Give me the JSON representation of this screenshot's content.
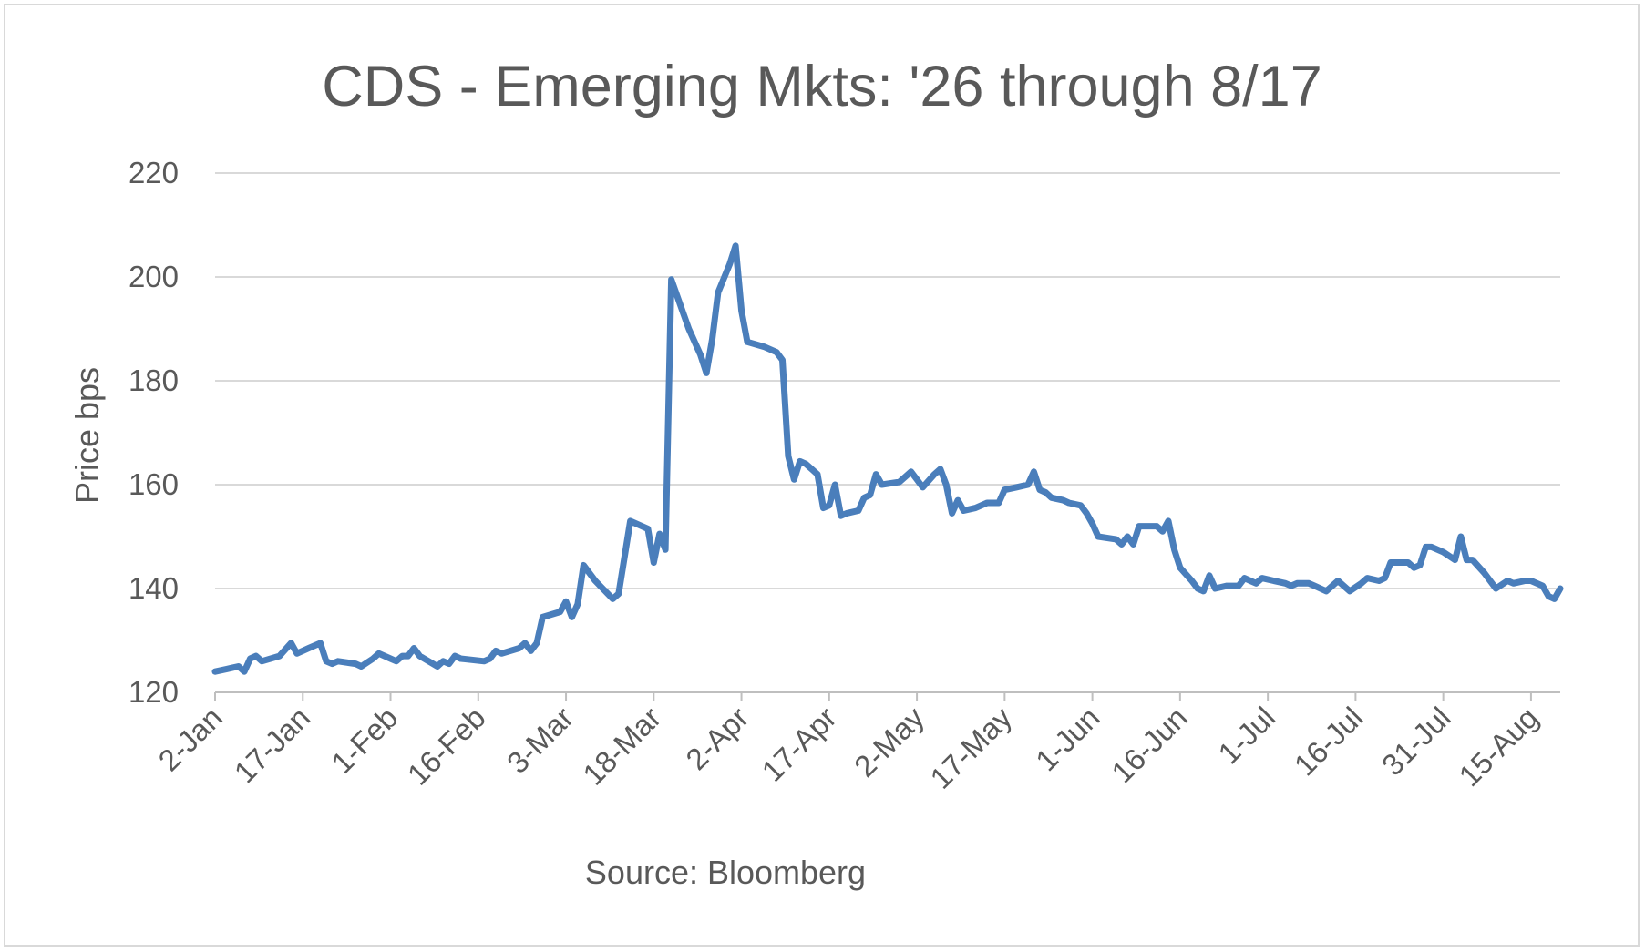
{
  "chart_data": {
    "type": "line",
    "title": "CDS - Emerging Mkts: '26 through 8/17",
    "ylabel": "Price bps",
    "xlabel": "Source: Bloomberg",
    "ylim": [
      120,
      220
    ],
    "yticks": [
      "120",
      "140",
      "160",
      "180",
      "200",
      "220"
    ],
    "xticks": [
      "2-Jan",
      "17-Jan",
      "1-Feb",
      "16-Feb",
      "3-Mar",
      "18-Mar",
      "2-Apr",
      "17-Apr",
      "2-May",
      "17-May",
      "1-Jun",
      "16-Jun",
      "1-Jul",
      "16-Jul",
      "31-Jul",
      "15-Aug"
    ],
    "x_range_days": [
      0,
      230
    ],
    "grid": true,
    "legend": "none",
    "series_color": "#4a7ebb",
    "points": [
      [
        0,
        124
      ],
      [
        2,
        124.5
      ],
      [
        4,
        125
      ],
      [
        5,
        124
      ],
      [
        6,
        126.5
      ],
      [
        7,
        127
      ],
      [
        8,
        126
      ],
      [
        11,
        127
      ],
      [
        13,
        129.5
      ],
      [
        14,
        127.5
      ],
      [
        16,
        128.5
      ],
      [
        18,
        129.5
      ],
      [
        19,
        126
      ],
      [
        20,
        125.5
      ],
      [
        21,
        126
      ],
      [
        24,
        125.5
      ],
      [
        25,
        125
      ],
      [
        27,
        126.5
      ],
      [
        28,
        127.5
      ],
      [
        30,
        126.5
      ],
      [
        31,
        126
      ],
      [
        32,
        127
      ],
      [
        33,
        127
      ],
      [
        34,
        128.5
      ],
      [
        35,
        127
      ],
      [
        38,
        125
      ],
      [
        39,
        126
      ],
      [
        40,
        125.5
      ],
      [
        41,
        127
      ],
      [
        42,
        126.5
      ],
      [
        46,
        126
      ],
      [
        47,
        126.5
      ],
      [
        48,
        128
      ],
      [
        49,
        127.5
      ],
      [
        52,
        128.5
      ],
      [
        53,
        129.5
      ],
      [
        54,
        128
      ],
      [
        55,
        129.5
      ],
      [
        56,
        134.5
      ],
      [
        59,
        135.5
      ],
      [
        60,
        137.5
      ],
      [
        61,
        134.5
      ],
      [
        62,
        137
      ],
      [
        63,
        144.5
      ],
      [
        65,
        141.5
      ],
      [
        68,
        138
      ],
      [
        69,
        139
      ],
      [
        70,
        146
      ],
      [
        71,
        153
      ],
      [
        74,
        151.5
      ],
      [
        75,
        145
      ],
      [
        76,
        150.5
      ],
      [
        77,
        147.5
      ],
      [
        78,
        199.5
      ],
      [
        81,
        190
      ],
      [
        83,
        185
      ],
      [
        84,
        181.5
      ],
      [
        85,
        188
      ],
      [
        86,
        197
      ],
      [
        88,
        202.5
      ],
      [
        89,
        206
      ],
      [
        90,
        193.5
      ],
      [
        91,
        187.5
      ],
      [
        94,
        186.5
      ],
      [
        96,
        185.5
      ],
      [
        97,
        184
      ],
      [
        98,
        165.5
      ],
      [
        99,
        161
      ],
      [
        100,
        164.5
      ],
      [
        101,
        164
      ],
      [
        103,
        162
      ],
      [
        104,
        155.5
      ],
      [
        105,
        156
      ],
      [
        106,
        160
      ],
      [
        107,
        154
      ],
      [
        108,
        154.5
      ],
      [
        110,
        155
      ],
      [
        111,
        157.5
      ],
      [
        112,
        158
      ],
      [
        113,
        162
      ],
      [
        114,
        160
      ],
      [
        117,
        160.5
      ],
      [
        119,
        162.5
      ],
      [
        120,
        161
      ],
      [
        121,
        159.5
      ],
      [
        123,
        162
      ],
      [
        124,
        163
      ],
      [
        125,
        160
      ],
      [
        126,
        154.5
      ],
      [
        127,
        157
      ],
      [
        128,
        155
      ],
      [
        130,
        155.5
      ],
      [
        132,
        156.5
      ],
      [
        134,
        156.5
      ],
      [
        135,
        159
      ],
      [
        137,
        159.5
      ],
      [
        139,
        160
      ],
      [
        140,
        162.5
      ],
      [
        141,
        159
      ],
      [
        142,
        158.5
      ],
      [
        143,
        157.5
      ],
      [
        145,
        157
      ],
      [
        146,
        156.5
      ],
      [
        148,
        156
      ],
      [
        149,
        154.5
      ],
      [
        150,
        152.5
      ],
      [
        151,
        150
      ],
      [
        154,
        149.5
      ],
      [
        155,
        148.5
      ],
      [
        156,
        150
      ],
      [
        157,
        148.5
      ],
      [
        158,
        152
      ],
      [
        161,
        152
      ],
      [
        162,
        151
      ],
      [
        163,
        153
      ],
      [
        164,
        147.5
      ],
      [
        165,
        144
      ],
      [
        167,
        141.5
      ],
      [
        168,
        140
      ],
      [
        169,
        139.5
      ],
      [
        170,
        142.5
      ],
      [
        171,
        140
      ],
      [
        173,
        140.5
      ],
      [
        175,
        140.5
      ],
      [
        176,
        142
      ],
      [
        177,
        141.5
      ],
      [
        178,
        141
      ],
      [
        179,
        142
      ],
      [
        181,
        141.5
      ],
      [
        183,
        141
      ],
      [
        184,
        140.5
      ],
      [
        185,
        141
      ],
      [
        187,
        141
      ],
      [
        188,
        140.5
      ],
      [
        190,
        139.5
      ],
      [
        192,
        141.5
      ],
      [
        194,
        139.5
      ],
      [
        196,
        141
      ],
      [
        197,
        142
      ],
      [
        199,
        141.5
      ],
      [
        200,
        142
      ],
      [
        201,
        145
      ],
      [
        204,
        145
      ],
      [
        205,
        144
      ],
      [
        206,
        144.5
      ],
      [
        207,
        148
      ],
      [
        208,
        148
      ],
      [
        210,
        147
      ],
      [
        212,
        145.5
      ],
      [
        213,
        150
      ],
      [
        214,
        145.5
      ],
      [
        215,
        145.5
      ],
      [
        217,
        143
      ],
      [
        219,
        140
      ],
      [
        221,
        141.5
      ],
      [
        222,
        141
      ],
      [
        224,
        141.5
      ],
      [
        225,
        141.5
      ],
      [
        227,
        140.5
      ],
      [
        228,
        138.5
      ],
      [
        229,
        138
      ],
      [
        230,
        140
      ]
    ]
  }
}
